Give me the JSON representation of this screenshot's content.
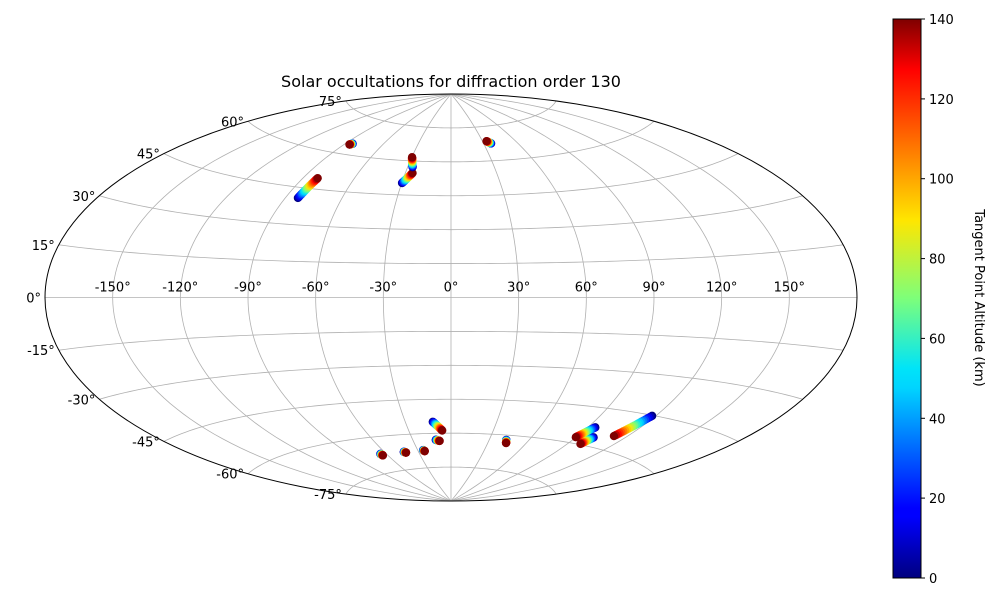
{
  "chart_data": {
    "type": "scatter",
    "projection": "aitoff",
    "title": "Solar occultations for diffraction order 130",
    "lon_ticks": [
      "-150°",
      "-120°",
      "-90°",
      "-60°",
      "-30°",
      "0°",
      "30°",
      "60°",
      "90°",
      "120°",
      "150°"
    ],
    "lat_ticks": [
      "75°",
      "60°",
      "45°",
      "30°",
      "15°",
      "0°",
      "-15°",
      "-30°",
      "-45°",
      "-60°",
      "-75°"
    ],
    "grid": true,
    "colorbar": {
      "label": "Tangent Point Altitude (km)",
      "colormap": "jet",
      "range": [
        0,
        140
      ],
      "ticks": [
        "0",
        "20",
        "40",
        "60",
        "80",
        "100",
        "120",
        "140"
      ]
    },
    "series": [
      {
        "lon": [
          -84.5,
          -86.0
        ],
        "lat": [
          64.5,
          64.0
        ],
        "alt": [
          0,
          140
        ]
      },
      {
        "lon": [
          -83.4,
          -81.6
        ],
        "lat": [
          40.8,
          49.4
        ],
        "alt": [
          0,
          140
        ]
      },
      {
        "lon": [
          -29.8,
          -25.3
        ],
        "lat": [
          50.2,
          54.7
        ],
        "alt": [
          0,
          140
        ]
      },
      {
        "lon": [
          -26.6,
          -29.8
        ],
        "lat": [
          57.3,
          61.6
        ],
        "alt": [
          0,
          140
        ]
      },
      {
        "lon": [
          36.7,
          33.8
        ],
        "lat": [
          67.5,
          68.6
        ],
        "alt": [
          0,
          140
        ]
      },
      {
        "lon": [
          -65.1,
          -64.4
        ],
        "lat": [
          -67.2,
          -67.9
        ],
        "alt": [
          0,
          140
        ]
      },
      {
        "lon": [
          -43.2,
          -41.7
        ],
        "lat": [
          -67.4,
          -67.8
        ],
        "alt": [
          0,
          140
        ]
      },
      {
        "lon": [
          -25.1,
          -24.1
        ],
        "lat": [
          -67.2,
          -67.7
        ],
        "alt": [
          0,
          140
        ]
      },
      {
        "lon": [
          -12.0,
          -6.3
        ],
        "lat": [
          -54.9,
          -58.8
        ],
        "alt": [
          0,
          140
        ]
      },
      {
        "lon": [
          -12.0,
          -9.1
        ],
        "lat": [
          -62.9,
          -63.4
        ],
        "alt": [
          0,
          140
        ]
      },
      {
        "lon": [
          43.1,
          44.5
        ],
        "lat": [
          -62.1,
          -63.4
        ],
        "alt": [
          0,
          140
        ]
      },
      {
        "lon": [
          94.4,
          89.8
        ],
        "lat": [
          -52.8,
          -57.6
        ],
        "alt": [
          0,
          140
        ]
      },
      {
        "lon": [
          101.1,
          98.7
        ],
        "lat": [
          -56.5,
          -59.7
        ],
        "alt": [
          0,
          140
        ]
      },
      {
        "lon": [
          118.1,
          112.1
        ],
        "lat": [
          -45.2,
          -54.6
        ],
        "alt": [
          0,
          140
        ]
      }
    ]
  }
}
